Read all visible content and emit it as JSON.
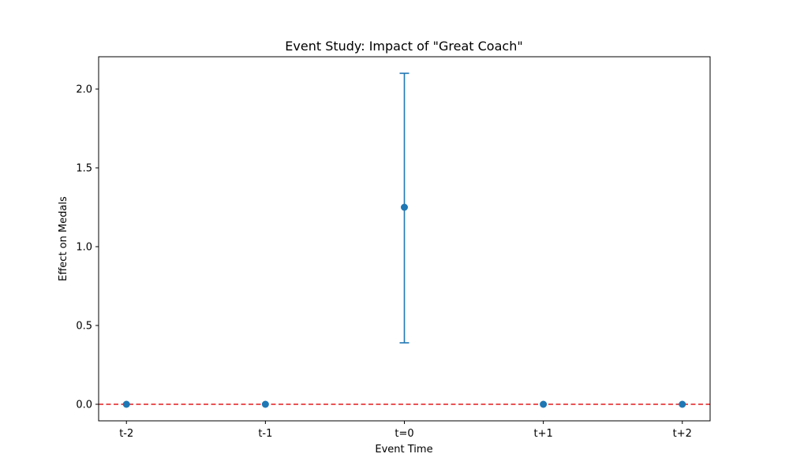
{
  "chart_data": {
    "type": "scatter",
    "title": "Event Study: Impact of \"Great Coach\"",
    "xlabel": "Event Time",
    "ylabel": "Effect on Medals",
    "categories": [
      "t-2",
      "t-1",
      "t=0",
      "t+1",
      "t+2"
    ],
    "series": [
      {
        "values": [
          0,
          0,
          1.25,
          0,
          0
        ],
        "error_lower": [
          0,
          0,
          0.39,
          0,
          0
        ],
        "error_upper": [
          0,
          0,
          2.1,
          0,
          0
        ]
      }
    ],
    "reference_line": {
      "y": 0,
      "style": "dashed",
      "color": "#e41a1c"
    },
    "ylim": [
      -0.105,
      2.205
    ],
    "y_ticks": [
      0.0,
      0.5,
      1.0,
      1.5,
      2.0
    ],
    "y_tick_labels": [
      "0.0",
      "0.5",
      "1.0",
      "1.5",
      "2.0"
    ],
    "grid": false,
    "legend": "none",
    "colors": {
      "series": "#1f77b4",
      "reference": "#e41a1c"
    }
  }
}
